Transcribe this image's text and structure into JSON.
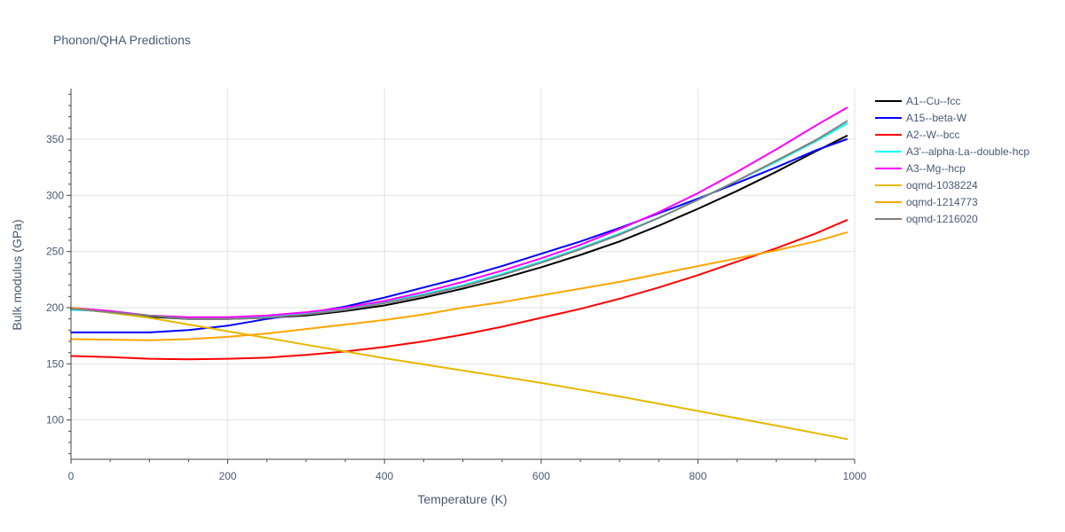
{
  "chart_data": {
    "type": "line",
    "title": "Phonon/QHA Predictions",
    "xlabel": "Temperature (K)",
    "ylabel": "Bulk modulus (GPa)",
    "xlim": [
      0,
      1000
    ],
    "ylim": [
      65,
      395
    ],
    "x_ticks": [
      0,
      200,
      400,
      600,
      800,
      1000
    ],
    "y_ticks": [
      100,
      150,
      200,
      250,
      300,
      350
    ],
    "grid": true,
    "legend_position": "right",
    "series": [
      {
        "name": "A1--Cu--fcc",
        "color": "#000000",
        "x": [
          0,
          50,
          100,
          150,
          200,
          250,
          300,
          350,
          400,
          450,
          500,
          550,
          600,
          650,
          700,
          750,
          800,
          850,
          900,
          950,
          990
        ],
        "y": [
          199,
          196,
          192,
          190,
          190,
          191,
          193,
          197,
          202,
          209,
          217,
          226,
          236,
          247,
          259,
          273,
          288,
          304,
          321,
          339,
          353
        ]
      },
      {
        "name": "A15--beta-W",
        "color": "#0000ff",
        "x": [
          0,
          50,
          100,
          150,
          200,
          250,
          300,
          350,
          400,
          450,
          500,
          550,
          600,
          650,
          700,
          750,
          800,
          850,
          900,
          950,
          990
        ],
        "y": [
          178,
          178,
          178,
          180,
          184,
          190,
          195,
          201,
          209,
          218,
          227,
          237,
          248,
          259,
          271,
          284,
          297,
          311,
          325,
          340,
          350
        ]
      },
      {
        "name": "A2--W--bcc",
        "color": "#ff0000",
        "x": [
          0,
          50,
          100,
          150,
          200,
          250,
          300,
          350,
          400,
          450,
          500,
          550,
          600,
          650,
          700,
          750,
          800,
          850,
          900,
          950,
          990
        ],
        "y": [
          157,
          156,
          154.5,
          154,
          154.5,
          155.5,
          158,
          161,
          165,
          170,
          176,
          183,
          191,
          199,
          208,
          218,
          229,
          241,
          253,
          266,
          278
        ]
      },
      {
        "name": "A3'--alpha-La--double-hcp",
        "color": "#00ffff",
        "x": [
          0,
          50,
          100,
          150,
          200,
          250,
          300,
          350,
          400,
          450,
          500,
          550,
          600,
          650,
          700,
          750,
          800,
          850,
          900,
          950,
          990
        ],
        "y": [
          198,
          197,
          193,
          191,
          191,
          192,
          195,
          199,
          205,
          212,
          220,
          230,
          241,
          253,
          266,
          280,
          296,
          313,
          330,
          348,
          364
        ]
      },
      {
        "name": "A3--Mg--hcp",
        "color": "#ff00ff",
        "x": [
          0,
          50,
          100,
          150,
          200,
          250,
          300,
          350,
          400,
          450,
          500,
          550,
          600,
          650,
          700,
          750,
          800,
          850,
          900,
          950,
          990
        ],
        "y": [
          200,
          197,
          193,
          191.5,
          191.5,
          193,
          196,
          200,
          206,
          214,
          223,
          233,
          244,
          256,
          270,
          285,
          302,
          321,
          341,
          362,
          378
        ]
      },
      {
        "name": "oqmd-1038224",
        "color": "#e6b800",
        "x": [
          0,
          100,
          200,
          300,
          400,
          500,
          600,
          700,
          800,
          900,
          990
        ],
        "y": [
          200,
          191,
          179,
          167,
          155,
          144,
          133,
          121,
          108,
          95,
          83
        ]
      },
      {
        "name": "oqmd-1214773",
        "color": "#ffa500",
        "x": [
          0,
          50,
          100,
          150,
          200,
          250,
          300,
          350,
          400,
          450,
          500,
          550,
          600,
          650,
          700,
          750,
          800,
          850,
          900,
          950,
          990
        ],
        "y": [
          172,
          171.5,
          171,
          172,
          174,
          177,
          181,
          185,
          189,
          194,
          200,
          205,
          211,
          217,
          223,
          230,
          237,
          244,
          251,
          259,
          267
        ]
      },
      {
        "name": "oqmd-1216020",
        "color": "#808080",
        "x": [
          0,
          50,
          100,
          150,
          200,
          250,
          300,
          350,
          400,
          450,
          500,
          550,
          600,
          650,
          700,
          750,
          800,
          850,
          900,
          950,
          990
        ],
        "y": [
          199,
          196,
          193,
          190,
          190,
          191,
          194,
          198,
          204,
          211,
          219,
          229,
          240,
          252,
          265,
          280,
          296,
          313,
          331,
          349,
          366
        ]
      }
    ]
  }
}
